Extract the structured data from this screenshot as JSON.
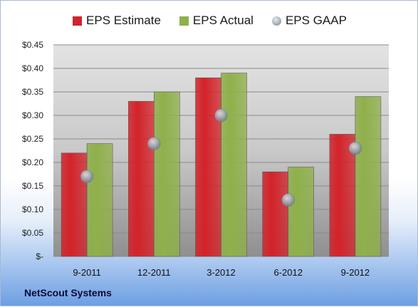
{
  "chart_data": {
    "type": "bar",
    "categories": [
      "9-2011",
      "12-2011",
      "3-2012",
      "6-2012",
      "9-2012"
    ],
    "series": [
      {
        "name": "EPS Estimate",
        "kind": "bar",
        "values": [
          0.22,
          0.33,
          0.38,
          0.18,
          0.26
        ],
        "color": "#d2232a"
      },
      {
        "name": "EPS Actual",
        "kind": "bar",
        "values": [
          0.24,
          0.35,
          0.39,
          0.19,
          0.34
        ],
        "color": "#8fb04a"
      },
      {
        "name": "EPS GAAP",
        "kind": "marker",
        "values": [
          0.17,
          0.24,
          0.3,
          0.12,
          0.23
        ],
        "color": "#9aa3b0"
      }
    ],
    "yticks": [
      "$-",
      "$0.05",
      "$0.10",
      "$0.15",
      "$0.20",
      "$0.25",
      "$0.30",
      "$0.35",
      "$0.40",
      "$0.45"
    ],
    "ylim": [
      0,
      0.45
    ],
    "grid": true,
    "legend_position": "top"
  },
  "footer": {
    "company": "NetScout Systems"
  }
}
